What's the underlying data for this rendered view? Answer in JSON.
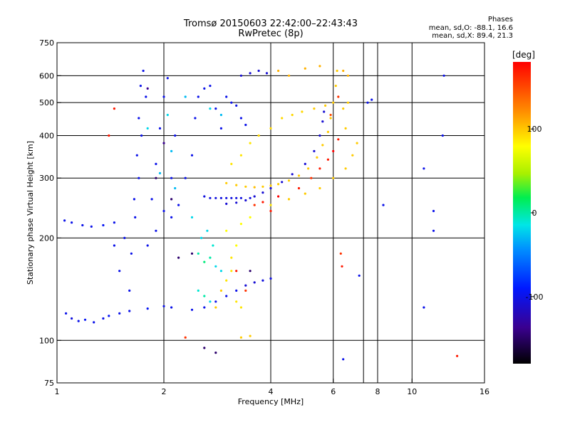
{
  "header": {
    "title": "Tromsø 20150603 22:42:00–22:43:43",
    "subtitle": "RwPretec (8p)"
  },
  "stats": {
    "heading": "Phases",
    "line_o": "mean, sd,O: -88.1, 16.6",
    "line_x": "mean, sd,X:  89.4, 21.3"
  },
  "chart_data": {
    "type": "scatter",
    "title": "Tromsø 20150603 22:42:00–22:43:43",
    "subtitle": "RwPretec (8p)",
    "xlabel": "Frequency [MHz]",
    "ylabel": "Stationary phase Virtual Height [km]",
    "x_scale": "log",
    "y_scale": "log",
    "xlim": [
      1,
      16
    ],
    "ylim": [
      75,
      750
    ],
    "x_ticks": [
      1,
      2,
      4,
      6,
      8,
      10,
      16
    ],
    "y_ticks": [
      75,
      100,
      200,
      300,
      400,
      500,
      600,
      750
    ],
    "x_gridlines": [
      2,
      4,
      6,
      7.3,
      8,
      10
    ],
    "y_gridlines": [
      100,
      200,
      300,
      400,
      500,
      600
    ],
    "grid": true,
    "colorbar": {
      "label": "[deg]",
      "range": [
        -180,
        180
      ],
      "ticks": [
        100,
        0,
        -100
      ],
      "colormap": "rainbow"
    },
    "series": [
      {
        "points": [
          [
            1.06,
            120,
            -100
          ],
          [
            1.1,
            116,
            -105
          ],
          [
            1.15,
            114,
            -100
          ],
          [
            1.2,
            115,
            -95
          ],
          [
            1.27,
            113,
            -100
          ],
          [
            1.35,
            116,
            -100
          ],
          [
            1.4,
            118,
            -95
          ],
          [
            1.5,
            120,
            -100
          ],
          [
            1.6,
            122,
            -100
          ],
          [
            1.8,
            124,
            -95
          ],
          [
            2.0,
            126,
            -100
          ],
          [
            2.1,
            125,
            -100
          ],
          [
            1.05,
            225,
            -100
          ],
          [
            1.1,
            222,
            -100
          ],
          [
            1.18,
            218,
            -100
          ],
          [
            1.25,
            216,
            -100
          ],
          [
            1.35,
            218,
            -95
          ],
          [
            1.45,
            222,
            -100
          ],
          [
            1.62,
            180,
            -100
          ],
          [
            1.65,
            260,
            -100
          ],
          [
            1.68,
            350,
            -100
          ],
          [
            1.7,
            450,
            -100
          ],
          [
            1.72,
            560,
            -100
          ],
          [
            1.75,
            620,
            -100
          ],
          [
            1.6,
            140,
            -100
          ],
          [
            1.66,
            230,
            -100
          ],
          [
            1.7,
            300,
            -100
          ],
          [
            1.73,
            400,
            -100
          ],
          [
            1.78,
            520,
            -100
          ],
          [
            1.55,
            200,
            -100
          ],
          [
            1.5,
            160,
            -100
          ],
          [
            1.45,
            190,
            -100
          ],
          [
            1.8,
            190,
            -100
          ],
          [
            1.85,
            260,
            -100
          ],
          [
            1.9,
            330,
            -100
          ],
          [
            1.95,
            420,
            -100
          ],
          [
            2.0,
            520,
            -100
          ],
          [
            2.05,
            590,
            -100
          ],
          [
            2.1,
            300,
            -100
          ],
          [
            2.15,
            400,
            -100
          ],
          [
            1.9,
            210,
            -100
          ],
          [
            2.0,
            240,
            -100
          ],
          [
            2.1,
            230,
            -100
          ],
          [
            2.2,
            250,
            -100
          ],
          [
            2.3,
            300,
            -100
          ],
          [
            2.4,
            350,
            -100
          ],
          [
            2.45,
            450,
            -100
          ],
          [
            2.5,
            520,
            -100
          ],
          [
            2.6,
            550,
            -100
          ],
          [
            2.7,
            560,
            -100
          ],
          [
            2.8,
            480,
            -100
          ],
          [
            2.9,
            420,
            -100
          ],
          [
            3.0,
            520,
            -100
          ],
          [
            3.1,
            500,
            -100
          ],
          [
            3.2,
            490,
            -100
          ],
          [
            3.3,
            450,
            -100
          ],
          [
            3.4,
            430,
            -100
          ],
          [
            2.6,
            265,
            -105
          ],
          [
            2.7,
            262,
            -105
          ],
          [
            2.8,
            262,
            -105
          ],
          [
            2.9,
            262,
            -105
          ],
          [
            3.0,
            262,
            -105
          ],
          [
            3.1,
            262,
            -105
          ],
          [
            3.2,
            262,
            -105
          ],
          [
            3.3,
            262,
            -105
          ],
          [
            3.5,
            262,
            -105
          ],
          [
            3.0,
            252,
            -110
          ],
          [
            3.2,
            254,
            -110
          ],
          [
            3.4,
            258,
            -110
          ],
          [
            3.6,
            265,
            -110
          ],
          [
            3.8,
            272,
            -110
          ],
          [
            4.0,
            280,
            -110
          ],
          [
            4.3,
            292,
            -110
          ],
          [
            4.6,
            308,
            -110
          ],
          [
            5.0,
            330,
            -110
          ],
          [
            5.3,
            360,
            -110
          ],
          [
            5.5,
            400,
            -110
          ],
          [
            5.6,
            440,
            -110
          ],
          [
            5.65,
            470,
            -110
          ],
          [
            3.3,
            600,
            -110
          ],
          [
            3.5,
            610,
            -110
          ],
          [
            3.7,
            620,
            -110
          ],
          [
            3.9,
            610,
            -110
          ],
          [
            3.4,
            145,
            -110
          ],
          [
            3.6,
            148,
            -110
          ],
          [
            3.8,
            150,
            -105
          ],
          [
            4.0,
            152,
            -105
          ],
          [
            3.2,
            140,
            -100
          ],
          [
            3.0,
            135,
            -100
          ],
          [
            2.8,
            130,
            -100
          ],
          [
            2.6,
            125,
            -100
          ],
          [
            2.4,
            123,
            -100
          ],
          [
            10.8,
            320,
            -100
          ],
          [
            10.8,
            125,
            -100
          ],
          [
            8.3,
            250,
            -100
          ],
          [
            7.1,
            155,
            -100
          ],
          [
            6.4,
            88,
            -100
          ],
          [
            7.5,
            500,
            -100
          ],
          [
            7.7,
            510,
            -100
          ],
          [
            11.5,
            240,
            -100
          ],
          [
            11.5,
            210,
            -100
          ],
          [
            12.3,
            600,
            -100
          ],
          [
            12.2,
            400,
            -100
          ]
        ]
      },
      {
        "points": [
          [
            2.5,
            180,
            0
          ],
          [
            2.6,
            170,
            10
          ],
          [
            2.7,
            175,
            0
          ],
          [
            2.8,
            165,
            -20
          ],
          [
            2.9,
            160,
            -20
          ],
          [
            2.5,
            140,
            -10
          ],
          [
            2.6,
            135,
            0
          ],
          [
            2.7,
            130,
            -20
          ],
          [
            2.55,
            200,
            -20
          ],
          [
            2.4,
            230,
            -20
          ],
          [
            2.65,
            210,
            -20
          ],
          [
            2.75,
            190,
            -10
          ],
          [
            1.95,
            310,
            -30
          ],
          [
            2.1,
            360,
            -30
          ],
          [
            1.8,
            420,
            -20
          ],
          [
            2.3,
            520,
            -30
          ],
          [
            2.7,
            480,
            -20
          ],
          [
            2.9,
            460,
            -30
          ],
          [
            2.15,
            280,
            -30
          ],
          [
            2.05,
            460,
            -20
          ]
        ]
      },
      {
        "points": [
          [
            3.0,
            290,
            100
          ],
          [
            3.2,
            286,
            100
          ],
          [
            3.4,
            283,
            100
          ],
          [
            3.6,
            282,
            105
          ],
          [
            3.8,
            283,
            100
          ],
          [
            4.0,
            285,
            100
          ],
          [
            4.2,
            288,
            100
          ],
          [
            4.5,
            295,
            100
          ],
          [
            4.8,
            305,
            100
          ],
          [
            5.1,
            320,
            100
          ],
          [
            5.4,
            345,
            100
          ],
          [
            5.6,
            375,
            100
          ],
          [
            5.8,
            410,
            100
          ],
          [
            5.9,
            450,
            100
          ],
          [
            6.0,
            500,
            100
          ],
          [
            6.1,
            560,
            100
          ],
          [
            6.15,
            620,
            100
          ],
          [
            3.1,
            330,
            90
          ],
          [
            3.3,
            350,
            90
          ],
          [
            3.5,
            380,
            90
          ],
          [
            3.7,
            400,
            95
          ],
          [
            4.0,
            420,
            95
          ],
          [
            4.3,
            450,
            95
          ],
          [
            4.6,
            460,
            95
          ],
          [
            4.9,
            470,
            95
          ],
          [
            5.3,
            480,
            100
          ],
          [
            5.7,
            490,
            100
          ],
          [
            6.4,
            480,
            100
          ],
          [
            6.6,
            500,
            100
          ],
          [
            6.5,
            420,
            100
          ],
          [
            4.2,
            620,
            110
          ],
          [
            4.5,
            600,
            110
          ],
          [
            5.0,
            630,
            110
          ],
          [
            5.5,
            640,
            110
          ],
          [
            6.4,
            620,
            110
          ],
          [
            6.6,
            600,
            110
          ],
          [
            3.0,
            150,
            90
          ],
          [
            3.1,
            160,
            90
          ],
          [
            3.2,
            130,
            90
          ],
          [
            3.3,
            125,
            90
          ],
          [
            3.3,
            102,
            100
          ],
          [
            3.5,
            103,
            100
          ],
          [
            2.8,
            125,
            100
          ],
          [
            2.9,
            140,
            100
          ],
          [
            3.1,
            175,
            90
          ],
          [
            3.2,
            190,
            80
          ],
          [
            3.0,
            210,
            80
          ],
          [
            3.3,
            220,
            80
          ],
          [
            3.5,
            230,
            80
          ],
          [
            4.0,
            250,
            90
          ],
          [
            4.5,
            260,
            100
          ],
          [
            5.0,
            270,
            100
          ],
          [
            5.5,
            280,
            100
          ],
          [
            6.0,
            300,
            100
          ],
          [
            6.5,
            320,
            100
          ],
          [
            6.8,
            350,
            100
          ],
          [
            7.0,
            380,
            100
          ]
        ]
      },
      {
        "points": [
          [
            3.6,
            250,
            160
          ],
          [
            3.8,
            255,
            170
          ],
          [
            4.2,
            265,
            180
          ],
          [
            4.8,
            280,
            170
          ],
          [
            5.2,
            300,
            160
          ],
          [
            5.5,
            320,
            170
          ],
          [
            5.8,
            340,
            170
          ],
          [
            6.0,
            360,
            180
          ],
          [
            6.2,
            390,
            170
          ],
          [
            3.4,
            140,
            160
          ],
          [
            3.2,
            160,
            170
          ],
          [
            5.9,
            460,
            150
          ],
          [
            6.2,
            520,
            160
          ],
          [
            6.3,
            180,
            160
          ],
          [
            6.35,
            165,
            170
          ],
          [
            13.4,
            90,
            170
          ],
          [
            2.3,
            102,
            160
          ],
          [
            1.45,
            480,
            170
          ],
          [
            1.4,
            400,
            170
          ],
          [
            4.0,
            240,
            170
          ]
        ]
      },
      {
        "points": [
          [
            2.6,
            95,
            -150
          ],
          [
            2.8,
            92,
            -150
          ],
          [
            2.2,
            175,
            -150
          ],
          [
            2.4,
            180,
            -150
          ],
          [
            1.9,
            300,
            -150
          ],
          [
            2.0,
            380,
            -140
          ],
          [
            1.8,
            550,
            -140
          ],
          [
            3.5,
            160,
            -150
          ],
          [
            2.1,
            260,
            -150
          ]
        ]
      }
    ]
  }
}
